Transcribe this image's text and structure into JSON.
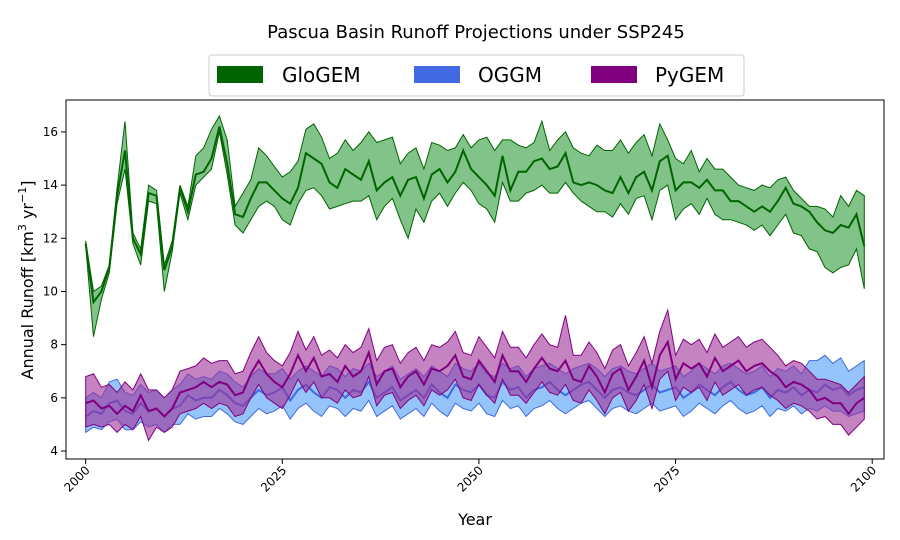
{
  "chart_data": {
    "type": "area",
    "title": "Pascua Basin Runoff Projections under SSP245",
    "xlabel": "Year",
    "ylabel": "Annual Runoff [km",
    "ylabel_sup1": "3",
    "ylabel_mid": " yr",
    "ylabel_sup2": "−1",
    "ylabel_end": "]",
    "xlim": [
      1997.5,
      2101.5
    ],
    "ylim": [
      3.7,
      17.2
    ],
    "xticks": [
      2000,
      2025,
      2050,
      2075,
      2100
    ],
    "yticks": [
      4,
      6,
      8,
      10,
      12,
      14,
      16
    ],
    "legend_position": "top-center",
    "x": [
      2000,
      2001,
      2002,
      2003,
      2004,
      2005,
      2006,
      2007,
      2008,
      2009,
      2010,
      2011,
      2012,
      2013,
      2014,
      2015,
      2016,
      2017,
      2018,
      2019,
      2020,
      2021,
      2022,
      2023,
      2024,
      2025,
      2026,
      2027,
      2028,
      2029,
      2030,
      2031,
      2032,
      2033,
      2034,
      2035,
      2036,
      2037,
      2038,
      2039,
      2040,
      2041,
      2042,
      2043,
      2044,
      2045,
      2046,
      2047,
      2048,
      2049,
      2050,
      2051,
      2052,
      2053,
      2054,
      2055,
      2056,
      2057,
      2058,
      2059,
      2060,
      2061,
      2062,
      2063,
      2064,
      2065,
      2066,
      2067,
      2068,
      2069,
      2070,
      2071,
      2072,
      2073,
      2074,
      2075,
      2076,
      2077,
      2078,
      2079,
      2080,
      2081,
      2082,
      2083,
      2084,
      2085,
      2086,
      2087,
      2088,
      2089,
      2090,
      2091,
      2092,
      2093,
      2094,
      2095,
      2096,
      2097,
      2098,
      2099
    ],
    "series": [
      {
        "name": "GloGEM",
        "line_color": "#006400",
        "fill_color": "#2e9b3a",
        "mean": [
          11.8,
          9.6,
          10.0,
          10.9,
          13.6,
          15.3,
          12.0,
          11.4,
          13.7,
          13.6,
          10.8,
          11.7,
          13.9,
          13.0,
          14.4,
          14.5,
          15.0,
          16.2,
          14.8,
          12.9,
          12.8,
          13.5,
          14.1,
          14.1,
          13.8,
          13.5,
          13.3,
          13.9,
          15.2,
          15.0,
          14.8,
          14.1,
          13.9,
          14.6,
          14.4,
          14.2,
          14.9,
          13.8,
          14.1,
          14.3,
          13.6,
          14.2,
          14.3,
          13.5,
          14.4,
          14.6,
          14.1,
          14.5,
          15.3,
          14.6,
          14.3,
          14.0,
          13.6,
          15.1,
          13.8,
          14.5,
          14.5,
          14.9,
          15.0,
          14.6,
          14.7,
          15.2,
          14.1,
          14.0,
          14.1,
          14.0,
          13.8,
          13.7,
          14.3,
          13.7,
          14.3,
          14.5,
          13.8,
          14.9,
          15.1,
          13.8,
          14.1,
          14.1,
          13.9,
          14.2,
          13.8,
          13.8,
          13.4,
          13.4,
          13.2,
          13.0,
          13.2,
          13.0,
          13.4,
          13.9,
          13.3,
          13.2,
          13.0,
          12.6,
          12.3,
          12.2,
          12.5,
          12.4,
          12.9,
          11.7
        ],
        "upper": [
          11.9,
          10.0,
          10.2,
          11.0,
          13.9,
          16.4,
          12.2,
          11.6,
          14.0,
          13.8,
          11.0,
          11.9,
          14.0,
          13.2,
          15.1,
          15.4,
          16.1,
          16.6,
          15.7,
          13.2,
          13.7,
          14.2,
          15.4,
          15.1,
          14.7,
          14.3,
          14.5,
          14.9,
          16.1,
          16.3,
          15.8,
          15.0,
          15.2,
          15.7,
          15.3,
          15.6,
          16.0,
          15.6,
          15.7,
          15.8,
          14.8,
          15.2,
          15.4,
          14.6,
          15.6,
          15.5,
          15.3,
          15.4,
          15.9,
          15.4,
          15.7,
          15.8,
          15.3,
          15.7,
          15.7,
          15.5,
          15.4,
          15.6,
          16.4,
          15.3,
          15.7,
          16.0,
          15.4,
          15.2,
          15.1,
          15.5,
          15.3,
          15.3,
          15.7,
          15.2,
          15.6,
          15.9,
          15.1,
          16.3,
          15.7,
          15.0,
          14.8,
          15.3,
          14.5,
          15.0,
          14.6,
          14.6,
          14.3,
          14.0,
          13.9,
          13.8,
          14.0,
          13.9,
          14.2,
          14.3,
          13.8,
          13.5,
          13.2,
          13.2,
          13.1,
          12.8,
          13.6,
          13.2,
          13.8,
          13.6
        ],
        "lower": [
          11.7,
          8.3,
          9.7,
          10.7,
          13.3,
          14.6,
          11.8,
          11.0,
          13.4,
          13.3,
          10.0,
          11.5,
          13.7,
          12.7,
          14.0,
          14.3,
          14.6,
          16.0,
          14.4,
          12.5,
          12.2,
          12.7,
          13.2,
          13.4,
          13.2,
          12.7,
          12.5,
          13.3,
          13.8,
          13.9,
          13.6,
          13.1,
          13.2,
          13.3,
          13.4,
          13.4,
          13.6,
          12.7,
          13.2,
          13.5,
          12.7,
          12.0,
          13.1,
          12.6,
          13.4,
          13.7,
          13.2,
          13.7,
          14.1,
          13.8,
          13.3,
          13.1,
          12.6,
          14.1,
          13.4,
          13.4,
          13.7,
          13.8,
          14.0,
          13.7,
          13.7,
          14.1,
          13.7,
          13.4,
          13.2,
          13.0,
          13.0,
          12.8,
          13.3,
          12.9,
          13.5,
          13.6,
          12.7,
          13.8,
          14.0,
          12.7,
          13.1,
          13.3,
          12.9,
          13.5,
          12.9,
          12.7,
          12.7,
          12.6,
          12.5,
          12.3,
          12.5,
          12.1,
          12.5,
          12.9,
          12.2,
          12.1,
          11.6,
          11.5,
          10.9,
          10.7,
          10.9,
          11.0,
          11.6,
          10.1
        ]
      },
      {
        "name": "OGGM",
        "line_color": "#4169e1",
        "fill_color": "#4d9cf5",
        "mean": [
          5.3,
          5.5,
          5.4,
          5.8,
          5.9,
          5.5,
          5.4,
          5.8,
          5.5,
          5.6,
          5.3,
          5.6,
          5.7,
          6.1,
          5.9,
          6.0,
          6.0,
          6.3,
          6.1,
          5.8,
          5.7,
          6.0,
          6.3,
          6.1,
          6.2,
          6.4,
          5.9,
          6.3,
          6.5,
          6.2,
          6.0,
          6.4,
          6.3,
          6.0,
          6.3,
          6.2,
          6.6,
          6.0,
          6.2,
          6.4,
          5.9,
          6.1,
          6.3,
          6.0,
          6.5,
          6.2,
          6.0,
          6.5,
          6.3,
          6.2,
          6.5,
          6.1,
          6.0,
          6.6,
          6.3,
          6.4,
          6.0,
          6.3,
          6.4,
          6.6,
          6.3,
          6.1,
          6.3,
          6.5,
          6.6,
          6.3,
          6.0,
          6.3,
          6.4,
          6.2,
          6.1,
          6.3,
          6.5,
          6.2,
          6.3,
          6.4,
          6.0,
          6.2,
          6.5,
          6.3,
          6.1,
          6.4,
          6.6,
          6.3,
          6.1,
          6.2,
          6.4,
          6.0,
          6.3,
          6.2,
          6.4,
          6.1,
          6.3,
          6.2,
          6.5,
          6.3,
          6.4,
          6.1,
          6.3,
          6.4
        ],
        "upper": [
          6.0,
          6.2,
          6.0,
          6.6,
          6.7,
          6.2,
          6.1,
          6.5,
          6.2,
          6.3,
          6.0,
          6.3,
          6.5,
          6.9,
          6.7,
          6.8,
          6.7,
          7.0,
          6.9,
          6.6,
          6.4,
          6.8,
          7.1,
          6.9,
          6.9,
          7.1,
          6.7,
          7.0,
          7.2,
          7.0,
          6.8,
          7.2,
          7.1,
          6.8,
          7.1,
          7.0,
          7.3,
          6.8,
          7.0,
          7.2,
          6.7,
          6.9,
          7.1,
          6.8,
          7.2,
          7.0,
          6.8,
          7.3,
          7.1,
          7.0,
          7.3,
          6.9,
          6.8,
          7.3,
          7.1,
          7.2,
          6.8,
          7.1,
          7.2,
          7.3,
          7.1,
          6.9,
          7.1,
          7.2,
          7.3,
          7.1,
          6.8,
          7.1,
          7.2,
          7.0,
          6.9,
          7.1,
          7.3,
          7.0,
          7.1,
          7.2,
          6.8,
          7.0,
          7.3,
          7.1,
          6.9,
          7.2,
          7.3,
          7.1,
          6.9,
          7.0,
          7.2,
          6.8,
          7.1,
          7.0,
          7.2,
          6.9,
          7.4,
          7.4,
          7.6,
          7.3,
          7.5,
          7.0,
          7.2,
          7.4
        ],
        "lower": [
          4.7,
          4.9,
          4.8,
          5.1,
          5.2,
          4.8,
          4.8,
          5.1,
          4.9,
          5.0,
          4.7,
          5.0,
          5.0,
          5.4,
          5.2,
          5.3,
          5.3,
          5.6,
          5.4,
          5.1,
          5.0,
          5.3,
          5.6,
          5.4,
          5.5,
          5.7,
          5.2,
          5.6,
          5.8,
          5.5,
          5.3,
          5.7,
          5.6,
          5.3,
          5.6,
          5.5,
          5.9,
          5.3,
          5.5,
          5.7,
          5.2,
          5.4,
          5.6,
          5.3,
          5.8,
          5.5,
          5.3,
          5.8,
          5.6,
          5.5,
          5.8,
          5.4,
          5.3,
          5.9,
          5.6,
          5.7,
          5.3,
          5.6,
          5.7,
          5.9,
          5.6,
          5.4,
          5.6,
          5.8,
          5.9,
          5.6,
          5.3,
          5.6,
          5.7,
          5.5,
          5.4,
          5.6,
          5.8,
          5.5,
          5.6,
          5.7,
          5.3,
          5.5,
          5.8,
          5.6,
          5.4,
          5.7,
          5.9,
          5.6,
          5.4,
          5.5,
          5.7,
          5.3,
          5.6,
          5.5,
          5.7,
          5.4,
          5.6,
          5.5,
          5.7,
          5.5,
          5.5,
          5.3,
          5.4,
          5.5
        ]
      },
      {
        "name": "PyGEM",
        "line_color": "#800080",
        "fill_color": "#a0309a",
        "mean": [
          5.8,
          5.9,
          5.6,
          5.7,
          5.4,
          5.7,
          5.5,
          6.1,
          5.5,
          5.6,
          5.3,
          5.6,
          6.2,
          6.3,
          6.4,
          6.6,
          6.4,
          6.6,
          6.5,
          6.1,
          6.2,
          6.9,
          7.4,
          6.9,
          6.6,
          6.4,
          6.9,
          7.6,
          7.0,
          7.5,
          6.8,
          6.9,
          6.6,
          7.2,
          6.8,
          7.0,
          7.7,
          6.5,
          7.0,
          7.1,
          6.4,
          6.8,
          7.0,
          6.5,
          7.1,
          7.0,
          7.2,
          7.6,
          6.8,
          6.7,
          7.4,
          7.0,
          6.6,
          7.6,
          7.0,
          7.0,
          6.6,
          7.1,
          7.5,
          7.1,
          7.0,
          7.4,
          6.7,
          6.6,
          7.2,
          6.8,
          6.2,
          6.9,
          7.1,
          6.3,
          6.8,
          7.4,
          6.4,
          7.6,
          8.1,
          6.7,
          7.3,
          7.1,
          7.3,
          6.8,
          7.5,
          7.0,
          7.2,
          7.4,
          7.0,
          7.2,
          7.3,
          7.0,
          6.8,
          6.4,
          6.6,
          6.5,
          6.3,
          5.9,
          6.0,
          5.8,
          5.8,
          5.4,
          5.8,
          6.0
        ],
        "upper": [
          6.8,
          6.9,
          6.4,
          6.5,
          6.2,
          6.6,
          6.3,
          6.9,
          6.3,
          6.3,
          6.0,
          6.3,
          7.0,
          7.1,
          7.2,
          7.5,
          7.3,
          7.4,
          7.4,
          6.9,
          7.0,
          7.7,
          8.3,
          7.7,
          7.4,
          7.2,
          7.7,
          8.5,
          7.8,
          8.3,
          7.6,
          7.8,
          7.5,
          8.0,
          7.7,
          7.9,
          8.6,
          7.4,
          7.9,
          8.0,
          7.3,
          7.7,
          7.9,
          7.4,
          8.0,
          7.9,
          8.1,
          8.5,
          7.7,
          7.6,
          8.3,
          7.9,
          7.5,
          8.5,
          7.9,
          7.9,
          7.5,
          8.0,
          8.4,
          8.0,
          7.9,
          9.1,
          7.6,
          7.6,
          8.1,
          7.7,
          7.1,
          7.8,
          8.0,
          7.2,
          7.7,
          8.3,
          7.3,
          8.5,
          9.3,
          7.6,
          8.2,
          8.0,
          8.2,
          7.7,
          8.4,
          7.9,
          8.1,
          8.3,
          7.9,
          8.1,
          8.2,
          7.9,
          7.6,
          7.2,
          7.4,
          7.3,
          7.0,
          6.7,
          6.7,
          6.6,
          6.5,
          6.2,
          6.5,
          6.8
        ],
        "lower": [
          4.9,
          5.0,
          4.9,
          5.0,
          4.7,
          5.0,
          4.8,
          5.3,
          4.4,
          4.9,
          4.7,
          4.9,
          5.4,
          5.5,
          5.6,
          5.8,
          5.6,
          5.8,
          5.7,
          5.3,
          5.4,
          6.0,
          6.5,
          6.0,
          5.8,
          5.6,
          6.1,
          6.7,
          6.2,
          6.6,
          6.0,
          6.0,
          5.8,
          6.3,
          6.0,
          6.1,
          6.8,
          5.7,
          6.1,
          6.2,
          5.6,
          5.9,
          6.1,
          5.7,
          6.3,
          6.1,
          6.3,
          6.7,
          6.0,
          5.9,
          6.5,
          6.1,
          5.8,
          6.7,
          6.1,
          6.1,
          5.8,
          6.2,
          6.6,
          6.2,
          6.1,
          6.5,
          5.9,
          5.8,
          6.3,
          5.9,
          5.4,
          6.0,
          6.2,
          5.5,
          5.9,
          6.5,
          5.6,
          6.7,
          7.0,
          5.9,
          6.4,
          6.2,
          6.4,
          5.9,
          6.6,
          6.1,
          6.3,
          6.5,
          6.1,
          6.3,
          6.4,
          6.1,
          5.9,
          5.6,
          5.8,
          5.7,
          5.5,
          5.2,
          5.3,
          5.0,
          5.0,
          4.6,
          4.9,
          5.2
        ]
      }
    ]
  }
}
